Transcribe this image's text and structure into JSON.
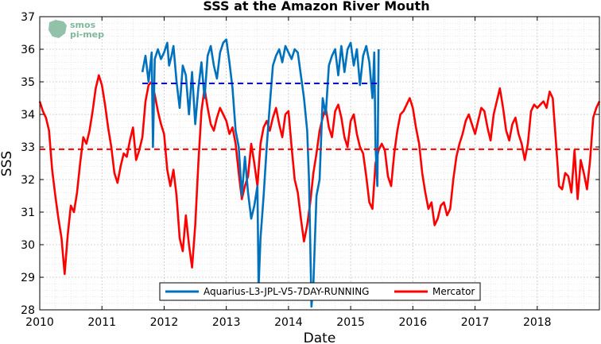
{
  "chart_data": {
    "type": "line",
    "title": "SSS at the Amazon River Mouth",
    "xlabel": "Date",
    "ylabel": "SSS",
    "xlim": [
      2010,
      2019
    ],
    "ylim": [
      28,
      37
    ],
    "x_ticks": [
      "2010",
      "2011",
      "2012",
      "2013",
      "2014",
      "2015",
      "2016",
      "2017",
      "2018"
    ],
    "y_ticks": [
      "28",
      "29",
      "30",
      "31",
      "32",
      "33",
      "34",
      "35",
      "36",
      "37"
    ],
    "grid": true,
    "legend_position": "bottom-center",
    "logo": {
      "line1": "smos",
      "line2": "pi-mep"
    },
    "series": [
      {
        "name": "Aquarius-L3-JPL-V5-7DAY-RUNNING",
        "color": "#0072BD",
        "mean": 34.95,
        "mean_x_range": [
          2011.65,
          2015.45
        ],
        "x": [
          2011.65,
          2011.7,
          2011.75,
          2011.8,
          2011.82,
          2011.85,
          2011.9,
          2011.95,
          2012.0,
          2012.05,
          2012.08,
          2012.12,
          2012.15,
          2012.2,
          2012.25,
          2012.3,
          2012.35,
          2012.4,
          2012.45,
          2012.5,
          2012.55,
          2012.6,
          2012.65,
          2012.7,
          2012.75,
          2012.8,
          2012.85,
          2012.9,
          2012.95,
          2013.0,
          2013.05,
          2013.1,
          2013.15,
          2013.2,
          2013.25,
          2013.3,
          2013.35,
          2013.4,
          2013.45,
          2013.5,
          2013.52,
          2013.55,
          2013.6,
          2013.65,
          2013.7,
          2013.75,
          2013.8,
          2013.85,
          2013.9,
          2013.95,
          2014.0,
          2014.05,
          2014.1,
          2014.15,
          2014.2,
          2014.25,
          2014.3,
          2014.33,
          2014.35,
          2014.37,
          2014.4,
          2014.45,
          2014.5,
          2014.55,
          2014.6,
          2014.65,
          2014.7,
          2014.75,
          2014.8,
          2014.85,
          2014.9,
          2014.95,
          2015.0,
          2015.05,
          2015.1,
          2015.15,
          2015.2,
          2015.25,
          2015.3,
          2015.35,
          2015.38,
          2015.4,
          2015.43,
          2015.45
        ],
        "y": [
          35.3,
          35.8,
          35.0,
          35.9,
          33.0,
          35.7,
          36.0,
          35.7,
          35.9,
          36.2,
          35.5,
          35.8,
          36.1,
          35.0,
          34.2,
          35.5,
          35.2,
          34.0,
          35.3,
          33.7,
          34.8,
          35.6,
          34.5,
          35.8,
          36.1,
          35.5,
          35.1,
          35.9,
          36.2,
          36.3,
          35.6,
          34.8,
          33.5,
          33.0,
          31.5,
          32.7,
          31.6,
          30.8,
          31.2,
          31.8,
          28.7,
          30.2,
          31.5,
          33.0,
          34.3,
          35.5,
          35.8,
          36.0,
          35.6,
          36.1,
          35.9,
          35.7,
          36.0,
          35.9,
          35.2,
          34.5,
          33.5,
          32.0,
          30.0,
          28.1,
          28.8,
          31.5,
          32.0,
          34.5,
          34.0,
          35.5,
          35.8,
          36.0,
          35.2,
          36.1,
          35.3,
          36.0,
          36.2,
          35.5,
          36.0,
          34.9,
          35.8,
          36.1,
          35.6,
          34.5,
          35.9,
          33.0,
          31.8,
          36.0
        ]
      },
      {
        "name": "Mercator",
        "color": "#FF0000",
        "mean": 32.93,
        "mean_x_range": [
          2010.0,
          2019.0
        ],
        "x": [
          2010.0,
          2010.05,
          2010.1,
          2010.15,
          2010.2,
          2010.25,
          2010.3,
          2010.35,
          2010.4,
          2010.45,
          2010.5,
          2010.55,
          2010.6,
          2010.65,
          2010.7,
          2010.75,
          2010.8,
          2010.85,
          2010.9,
          2010.95,
          2011.0,
          2011.05,
          2011.1,
          2011.15,
          2011.2,
          2011.25,
          2011.3,
          2011.35,
          2011.4,
          2011.45,
          2011.5,
          2011.55,
          2011.6,
          2011.65,
          2011.7,
          2011.75,
          2011.8,
          2011.85,
          2011.9,
          2011.95,
          2012.0,
          2012.05,
          2012.1,
          2012.15,
          2012.2,
          2012.25,
          2012.3,
          2012.35,
          2012.4,
          2012.45,
          2012.5,
          2012.55,
          2012.6,
          2012.65,
          2012.7,
          2012.75,
          2012.8,
          2012.85,
          2012.9,
          2012.95,
          2013.0,
          2013.05,
          2013.1,
          2013.15,
          2013.2,
          2013.25,
          2013.3,
          2013.35,
          2013.4,
          2013.45,
          2013.5,
          2013.55,
          2013.6,
          2013.65,
          2013.7,
          2013.75,
          2013.8,
          2013.85,
          2013.9,
          2013.95,
          2014.0,
          2014.05,
          2014.1,
          2014.15,
          2014.2,
          2014.25,
          2014.3,
          2014.35,
          2014.4,
          2014.45,
          2014.5,
          2014.55,
          2014.6,
          2014.65,
          2014.7,
          2014.75,
          2014.8,
          2014.85,
          2014.9,
          2014.95,
          2015.0,
          2015.05,
          2015.1,
          2015.15,
          2015.2,
          2015.25,
          2015.3,
          2015.35,
          2015.4,
          2015.45,
          2015.5,
          2015.55,
          2015.6,
          2015.65,
          2015.7,
          2015.75,
          2015.8,
          2015.85,
          2015.9,
          2015.95,
          2016.0,
          2016.05,
          2016.1,
          2016.15,
          2016.2,
          2016.25,
          2016.3,
          2016.35,
          2016.4,
          2016.45,
          2016.5,
          2016.55,
          2016.6,
          2016.65,
          2016.7,
          2016.75,
          2016.8,
          2016.85,
          2016.9,
          2016.95,
          2017.0,
          2017.05,
          2017.1,
          2017.15,
          2017.2,
          2017.25,
          2017.3,
          2017.35,
          2017.4,
          2017.45,
          2017.5,
          2017.55,
          2017.6,
          2017.65,
          2017.7,
          2017.75,
          2017.8,
          2017.85,
          2017.9,
          2017.95,
          2018.0,
          2018.05,
          2018.1,
          2018.15,
          2018.2,
          2018.25,
          2018.3,
          2018.35,
          2018.4,
          2018.45,
          2018.5,
          2018.55,
          2018.6,
          2018.65,
          2018.7,
          2018.75,
          2018.8,
          2018.85,
          2018.9,
          2018.95,
          2019.0
        ],
        "y": [
          34.4,
          34.1,
          33.9,
          33.5,
          32.3,
          31.5,
          30.8,
          30.2,
          29.1,
          30.3,
          31.2,
          31.0,
          31.6,
          32.5,
          33.3,
          33.1,
          33.5,
          34.1,
          34.8,
          35.2,
          34.9,
          34.3,
          33.6,
          33.0,
          32.2,
          31.9,
          32.4,
          32.8,
          32.7,
          33.2,
          33.6,
          32.6,
          32.9,
          33.3,
          34.4,
          34.9,
          35.0,
          34.6,
          34.1,
          33.7,
          33.4,
          32.3,
          31.8,
          32.3,
          31.5,
          30.2,
          29.8,
          30.9,
          30.0,
          29.3,
          30.6,
          32.5,
          34.1,
          34.8,
          34.2,
          33.7,
          33.5,
          33.9,
          34.2,
          34.0,
          33.8,
          33.4,
          33.6,
          33.1,
          32.2,
          31.4,
          31.8,
          32.1,
          33.1,
          32.5,
          31.8,
          33.1,
          33.6,
          33.8,
          33.5,
          33.9,
          34.2,
          33.7,
          33.3,
          34.0,
          34.1,
          33.0,
          32.0,
          31.6,
          30.8,
          30.1,
          30.6,
          31.3,
          32.2,
          32.8,
          33.5,
          33.9,
          34.2,
          33.6,
          33.3,
          34.1,
          34.3,
          33.9,
          33.3,
          33.0,
          33.8,
          34.0,
          33.4,
          33.0,
          32.8,
          32.1,
          31.3,
          31.1,
          32.5,
          32.9,
          33.1,
          32.9,
          32.1,
          31.8,
          32.8,
          33.5,
          34.0,
          34.1,
          34.3,
          34.5,
          34.2,
          33.6,
          33.1,
          32.2,
          31.6,
          31.1,
          31.3,
          30.6,
          30.8,
          31.2,
          31.3,
          30.9,
          31.1,
          32.0,
          32.7,
          33.1,
          33.4,
          33.8,
          34.0,
          33.7,
          33.4,
          33.8,
          34.2,
          34.1,
          33.6,
          33.2,
          34.0,
          34.4,
          34.8,
          34.2,
          33.5,
          33.2,
          33.7,
          33.9,
          33.4,
          33.1,
          32.6,
          33.1,
          34.1,
          34.3,
          34.2,
          34.3,
          34.4,
          34.2,
          34.7,
          34.5,
          33.2,
          31.8,
          31.7,
          32.2,
          32.1,
          31.6,
          32.9,
          31.4,
          32.6,
          32.2,
          31.7,
          32.6,
          33.9,
          34.2,
          34.4
        ]
      }
    ]
  }
}
